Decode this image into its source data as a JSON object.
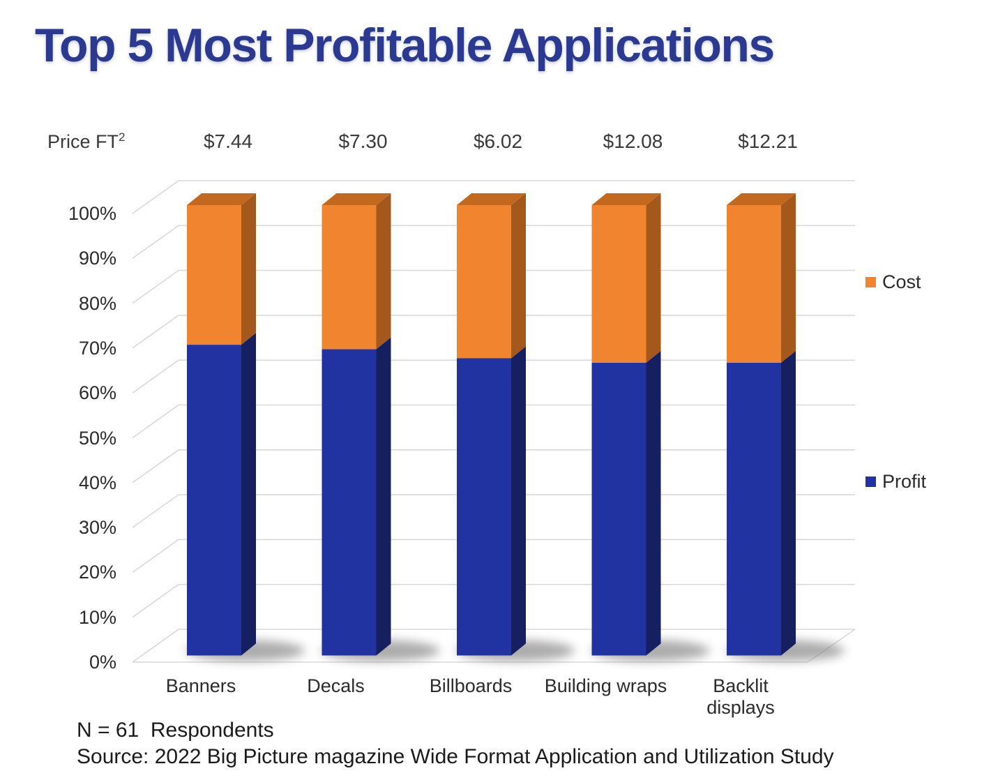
{
  "chart_data": {
    "type": "bar",
    "subtype": "3d-stacked-column-percent",
    "title": "Top 5 Most Profitable Applications",
    "categories": [
      "Banners",
      "Decals",
      "Billboards",
      "Building wraps",
      "Backlit\ndisplays"
    ],
    "series": [
      {
        "name": "Profit",
        "values": [
          69,
          68,
          66,
          65,
          65
        ],
        "color": "#2033a0"
      },
      {
        "name": "Cost",
        "values": [
          31,
          32,
          34,
          35,
          35
        ],
        "color": "#f0842f"
      }
    ],
    "price_row": {
      "label": "Price FT",
      "superscript": "2",
      "values": [
        "$7.44",
        "$7.30",
        "$6.02",
        "$12.08",
        "$12.21"
      ]
    },
    "yticks": [
      "0%",
      "10%",
      "20%",
      "30%",
      "40%",
      "50%",
      "60%",
      "70%",
      "80%",
      "90%",
      "100%"
    ],
    "ylim": [
      0,
      100
    ],
    "grid": true,
    "legend_position": "right",
    "legend": [
      {
        "label": "Cost",
        "color": "#f0842f"
      },
      {
        "label": "Profit",
        "color": "#2033a0"
      }
    ],
    "footnotes": [
      "N = 61  Respondents",
      "Source: 2022 Big Picture magazine Wide Format Application and Utilization Study"
    ]
  },
  "colors": {
    "title": "#2b3990",
    "profit_front": "#2033a0",
    "profit_side": "#161f60",
    "cost_front": "#f0842f",
    "cost_side": "#a4581c",
    "cost_top": "#c2691f",
    "gridline": "#d9d9d9",
    "shadow": "#767676",
    "text": "#2b2b2b"
  }
}
